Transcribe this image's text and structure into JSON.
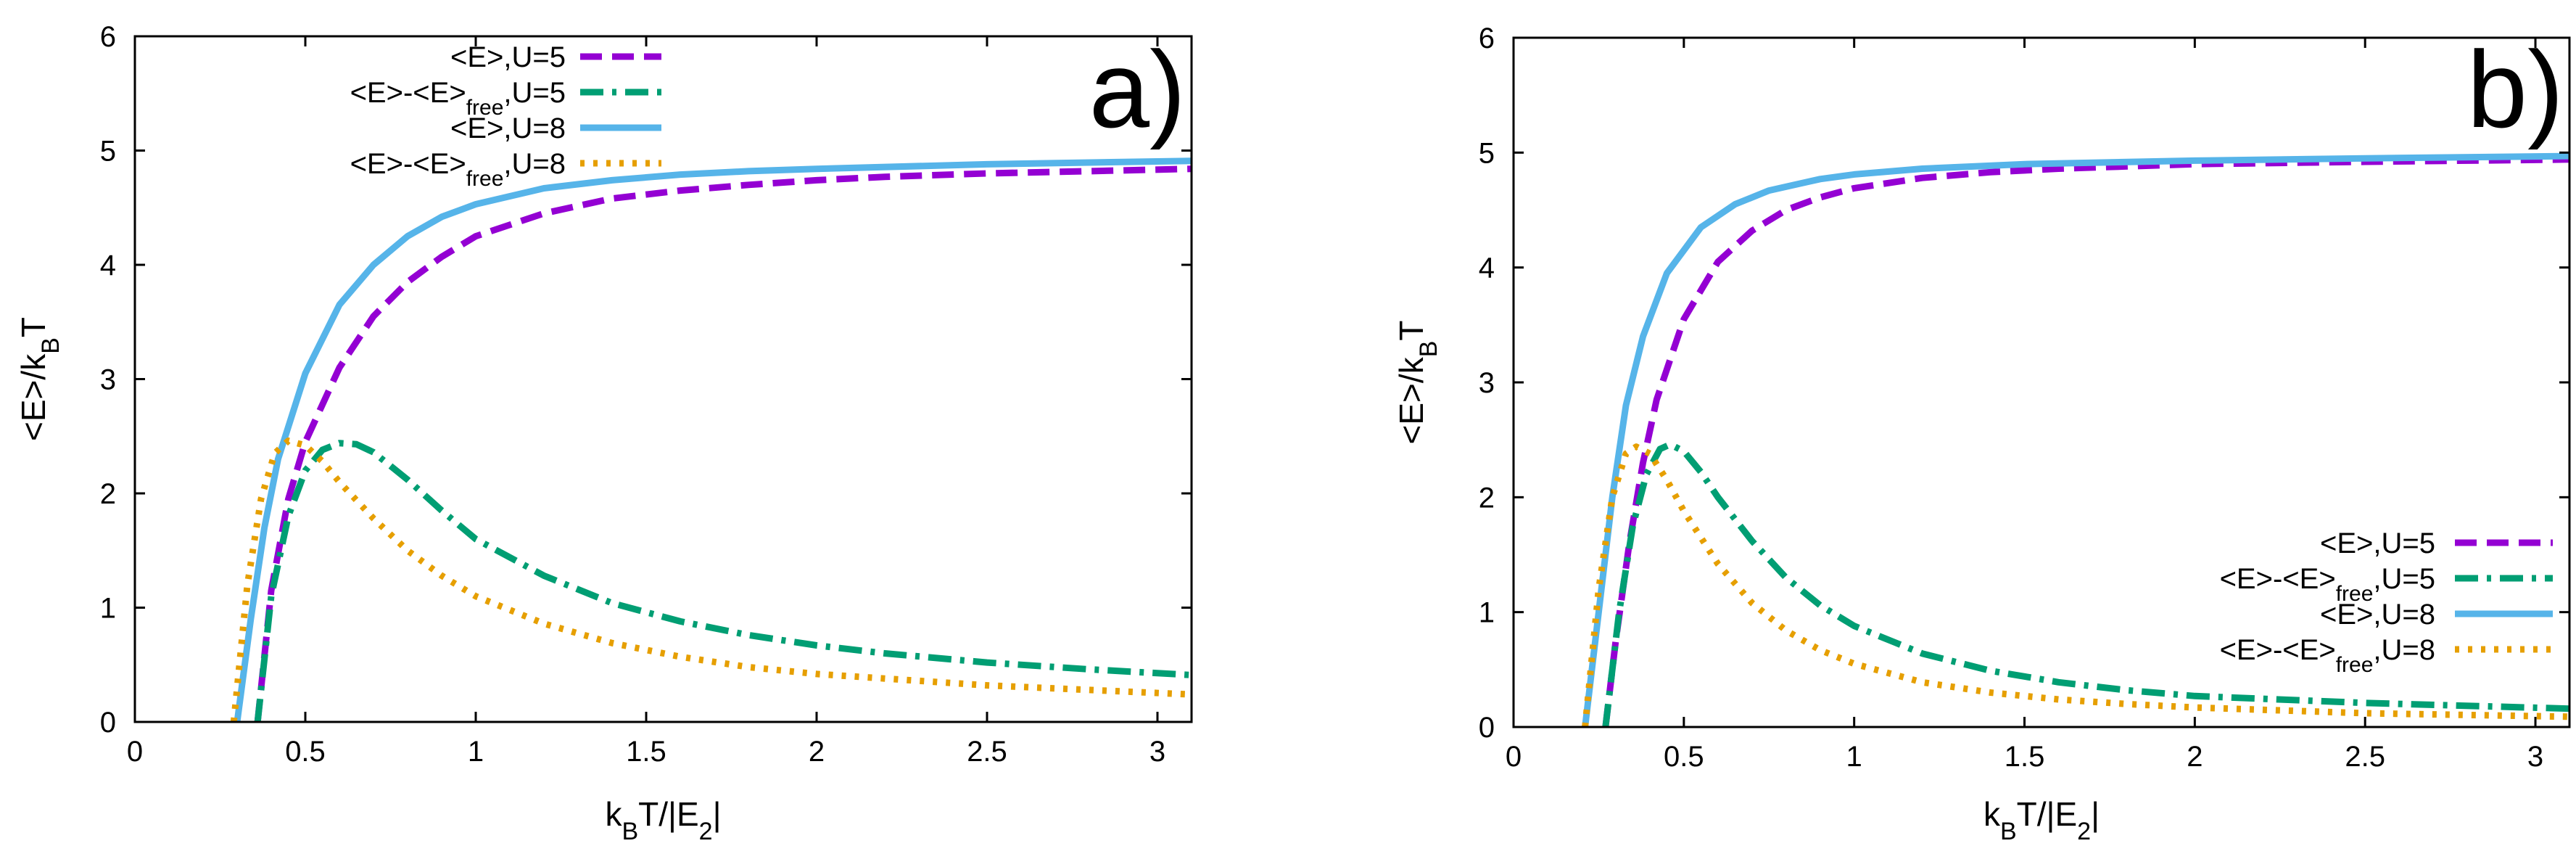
{
  "chart_data": [
    {
      "type": "line",
      "panel_label": "a)",
      "xlabel": "k_BT/|E_2|",
      "ylabel": "<E>/k_BT",
      "xlim": [
        0,
        3.1
      ],
      "ylim": [
        0,
        6
      ],
      "xticks": [
        "0",
        "0.5",
        "1",
        "1.5",
        "2",
        "2.5",
        "3"
      ],
      "yticks": [
        "0",
        "1",
        "2",
        "3",
        "4",
        "5",
        "6"
      ],
      "legend_position": "top-left",
      "series": [
        {
          "name": "<E>,U=5",
          "legend": {
            "pre": "<E>,U=5",
            "sub": "",
            "post": ""
          },
          "color": "#9400d3",
          "dash": "dashed",
          "x": [
            0.36,
            0.4,
            0.45,
            0.5,
            0.6,
            0.7,
            0.8,
            0.9,
            1.0,
            1.2,
            1.4,
            1.6,
            1.8,
            2.0,
            2.2,
            2.5,
            2.8,
            3.1
          ],
          "y": [
            0.0,
            1.15,
            1.95,
            2.45,
            3.1,
            3.55,
            3.85,
            4.07,
            4.25,
            4.45,
            4.58,
            4.65,
            4.7,
            4.74,
            4.77,
            4.8,
            4.82,
            4.84
          ]
        },
        {
          "name": "<E>-<E>free,U=5",
          "legend": {
            "pre": "<E>-<E>",
            "sub": "free",
            "post": ",U=5"
          },
          "color": "#009e73",
          "dash": "dashdot",
          "x": [
            0.36,
            0.4,
            0.45,
            0.5,
            0.55,
            0.6,
            0.65,
            0.7,
            0.8,
            0.9,
            1.0,
            1.2,
            1.4,
            1.6,
            1.8,
            2.0,
            2.2,
            2.5,
            2.8,
            3.1
          ],
          "y": [
            0.0,
            1.1,
            1.8,
            2.2,
            2.38,
            2.44,
            2.43,
            2.36,
            2.12,
            1.85,
            1.6,
            1.28,
            1.04,
            0.88,
            0.76,
            0.67,
            0.6,
            0.52,
            0.46,
            0.41
          ]
        },
        {
          "name": "<E>,U=8",
          "legend": {
            "pre": "<E>,U=8",
            "sub": "",
            "post": ""
          },
          "color": "#56b4e9",
          "dash": "solid",
          "x": [
            0.3,
            0.34,
            0.38,
            0.42,
            0.5,
            0.6,
            0.7,
            0.8,
            0.9,
            1.0,
            1.2,
            1.4,
            1.6,
            1.8,
            2.0,
            2.5,
            3.1
          ],
          "y": [
            0.0,
            0.9,
            1.7,
            2.3,
            3.05,
            3.65,
            4.0,
            4.25,
            4.42,
            4.53,
            4.67,
            4.74,
            4.79,
            4.82,
            4.84,
            4.88,
            4.91
          ]
        },
        {
          "name": "<E>-<E>free,U=8",
          "legend": {
            "pre": "<E>-<E>",
            "sub": "free",
            "post": ",U=8"
          },
          "color": "#e69f00",
          "dash": "dotted",
          "x": [
            0.29,
            0.33,
            0.37,
            0.41,
            0.45,
            0.5,
            0.55,
            0.6,
            0.7,
            0.8,
            0.9,
            1.0,
            1.2,
            1.4,
            1.6,
            1.8,
            2.0,
            2.5,
            3.1
          ],
          "y": [
            0.0,
            1.2,
            1.95,
            2.35,
            2.46,
            2.42,
            2.28,
            2.1,
            1.78,
            1.5,
            1.28,
            1.1,
            0.86,
            0.69,
            0.57,
            0.48,
            0.42,
            0.32,
            0.24
          ]
        }
      ]
    },
    {
      "type": "line",
      "panel_label": "b)",
      "xlabel": "k_BT/|E_2|",
      "ylabel": "<E>/k_BT",
      "xlim": [
        0,
        3.1
      ],
      "ylim": [
        0,
        6
      ],
      "xticks": [
        "0",
        "0.5",
        "1",
        "1.5",
        "2",
        "2.5",
        "3"
      ],
      "yticks": [
        "0",
        "1",
        "2",
        "3",
        "4",
        "5",
        "6"
      ],
      "legend_position": "bottom-right",
      "series": [
        {
          "name": "<E>,U=5",
          "legend": {
            "pre": "<E>,U=5",
            "sub": "",
            "post": ""
          },
          "color": "#9400d3",
          "dash": "dashed",
          "x": [
            0.27,
            0.3,
            0.34,
            0.38,
            0.42,
            0.5,
            0.6,
            0.7,
            0.8,
            0.9,
            1.0,
            1.2,
            1.4,
            1.6,
            2.0,
            2.5,
            3.1
          ],
          "y": [
            0.0,
            0.75,
            1.6,
            2.3,
            2.85,
            3.55,
            4.05,
            4.32,
            4.5,
            4.61,
            4.69,
            4.78,
            4.83,
            4.86,
            4.9,
            4.92,
            4.94
          ]
        },
        {
          "name": "<E>-<E>free,U=5",
          "legend": {
            "pre": "<E>-<E>",
            "sub": "free",
            "post": ",U=5"
          },
          "color": "#009e73",
          "dash": "dashdot",
          "x": [
            0.27,
            0.31,
            0.35,
            0.39,
            0.43,
            0.46,
            0.5,
            0.55,
            0.6,
            0.7,
            0.8,
            0.9,
            1.0,
            1.2,
            1.4,
            1.6,
            1.8,
            2.0,
            2.5,
            3.1
          ],
          "y": [
            0.0,
            1.0,
            1.75,
            2.2,
            2.42,
            2.46,
            2.4,
            2.22,
            2.0,
            1.62,
            1.3,
            1.06,
            0.88,
            0.64,
            0.49,
            0.39,
            0.32,
            0.27,
            0.21,
            0.16
          ]
        },
        {
          "name": "<E>,U=8",
          "legend": {
            "pre": "<E>,U=8",
            "sub": "",
            "post": ""
          },
          "color": "#56b4e9",
          "dash": "solid",
          "x": [
            0.21,
            0.25,
            0.29,
            0.33,
            0.38,
            0.45,
            0.55,
            0.65,
            0.75,
            0.9,
            1.0,
            1.2,
            1.5,
            2.0,
            2.5,
            3.1
          ],
          "y": [
            0.0,
            1.0,
            2.0,
            2.8,
            3.4,
            3.95,
            4.35,
            4.55,
            4.67,
            4.77,
            4.81,
            4.86,
            4.9,
            4.93,
            4.95,
            4.97
          ]
        },
        {
          "name": "<E>-<E>free,U=8",
          "legend": {
            "pre": "<E>-<E>",
            "sub": "free",
            "post": ",U=8"
          },
          "color": "#e69f00",
          "dash": "dotted",
          "x": [
            0.21,
            0.25,
            0.29,
            0.33,
            0.36,
            0.4,
            0.45,
            0.5,
            0.6,
            0.7,
            0.8,
            0.9,
            1.0,
            1.2,
            1.4,
            1.6,
            1.8,
            2.0,
            2.5,
            3.1
          ],
          "y": [
            0.0,
            1.2,
            2.0,
            2.38,
            2.44,
            2.38,
            2.15,
            1.88,
            1.42,
            1.08,
            0.84,
            0.67,
            0.55,
            0.39,
            0.3,
            0.24,
            0.2,
            0.17,
            0.12,
            0.09
          ]
        }
      ]
    }
  ]
}
